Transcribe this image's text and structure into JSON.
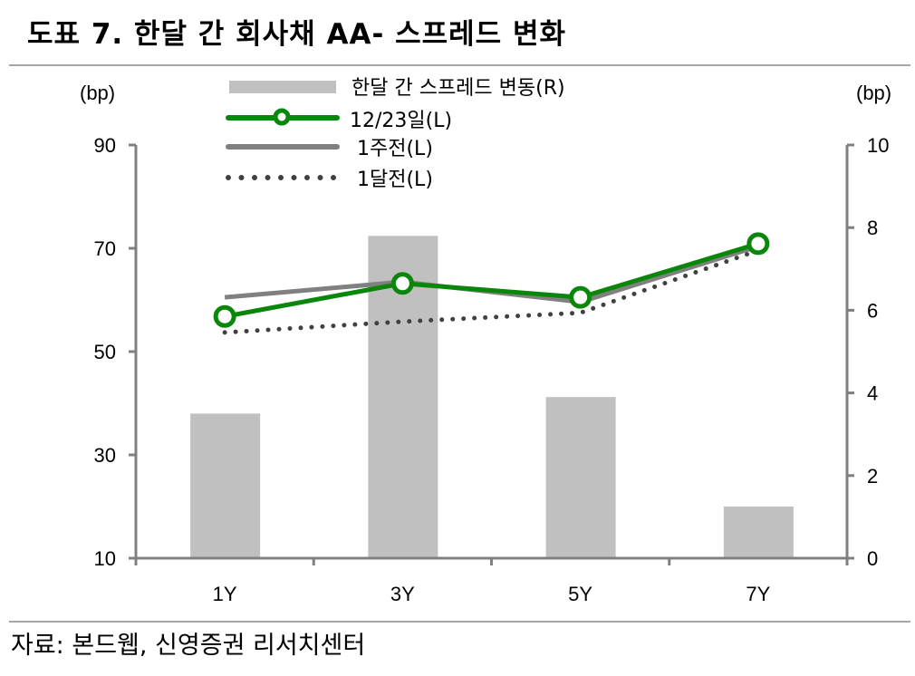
{
  "title": "도표 7. 한달 간 회사채 AA- 스프레드 변화",
  "source": "자료: 본드웹, 신영증권 리서치센터",
  "chart_data": {
    "type": "bar+line",
    "categories": [
      "1Y",
      "3Y",
      "5Y",
      "7Y"
    ],
    "left_axis": {
      "unit": "(bp)",
      "ylim": [
        10,
        90
      ],
      "ticks": [
        "10",
        "30",
        "50",
        "70",
        "90"
      ]
    },
    "right_axis": {
      "unit": "(bp)",
      "ylim": [
        0,
        10
      ],
      "ticks": [
        "0",
        "2",
        "4",
        "6",
        "8",
        "10"
      ]
    },
    "bars": {
      "name": "한달 간 스프레드 변동(R)",
      "axis": "right",
      "values": [
        3.5,
        7.8,
        3.9,
        1.25
      ],
      "color": "#c0c0c0"
    },
    "series": [
      {
        "name": "12/23일(L)",
        "axis": "left",
        "values": [
          56.8,
          63.2,
          60.5,
          70.9
        ],
        "color": "#0a870a",
        "style": "solid-marker"
      },
      {
        "name": "1주전(L)",
        "axis": "left",
        "values": [
          60.5,
          63.5,
          59.6,
          70.4
        ],
        "color": "#808080",
        "style": "solid"
      },
      {
        "name": "1달전(L)",
        "axis": "left",
        "values": [
          53.7,
          55.8,
          57.5,
          69.6
        ],
        "color": "#404040",
        "style": "dotted"
      }
    ],
    "legend_placement": "top-center",
    "grid": false
  }
}
